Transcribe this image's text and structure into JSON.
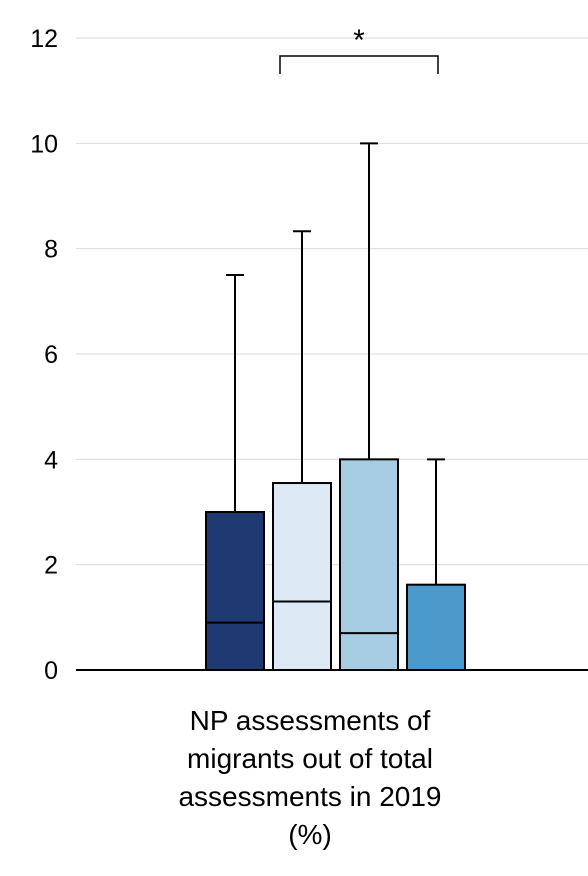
{
  "chart_data": {
    "type": "boxplot",
    "title": "",
    "xlabel_lines": [
      "NP assessments of",
      "migrants out of total",
      "assessments in 2019",
      "(%)"
    ],
    "ylabel": "",
    "ylim": [
      0,
      12
    ],
    "yticks": [
      "0",
      "2",
      "4",
      "6",
      "8",
      "10",
      "12"
    ],
    "grid": "horizontal",
    "legend": "none",
    "series": [
      {
        "color": "#1f3a73",
        "q1": 0,
        "median": 0.9,
        "q3": 3.0,
        "whisker_high": 7.5
      },
      {
        "color": "#ddeaf6",
        "q1": 0,
        "median": 1.3,
        "q3": 3.55,
        "whisker_high": 8.33
      },
      {
        "color": "#a7cde2",
        "q1": 0,
        "median": 0.7,
        "q3": 4.0,
        "whisker_high": 10.0
      },
      {
        "color": "#4b9acb",
        "q1": 0,
        "median": 0,
        "q3": 1.62,
        "whisker_high": 4.0
      }
    ],
    "significance": {
      "label": "*",
      "from_series": 2,
      "to_series": 4
    }
  }
}
